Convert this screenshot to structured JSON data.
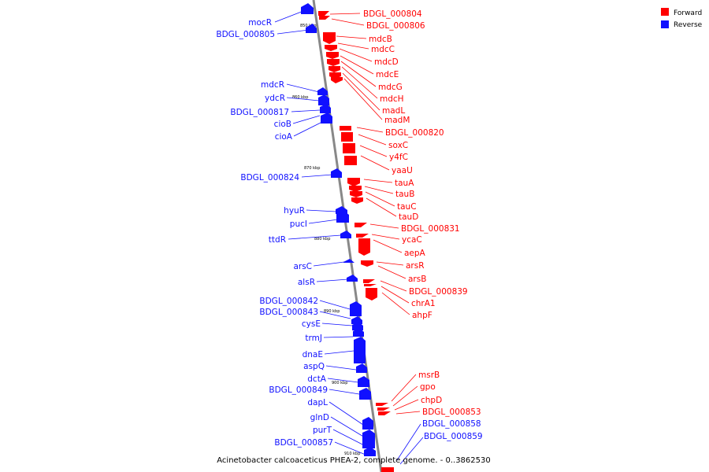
{
  "caption": "Acinetobacter calcoaceticus PHEA-2, complete genome. - 0..3862530",
  "colors": {
    "forward": "#ff0000",
    "reverse": "#1010ff",
    "backbone": "#888888"
  },
  "legend": [
    {
      "label": "Forward",
      "strand": "forward"
    },
    {
      "label": "Reverse",
      "strand": "reverse"
    }
  ],
  "ticks": [
    "850 kbp",
    "860 kbp",
    "870 kbp",
    "880 kbp",
    "890 kbp",
    "900 kbp",
    "910 kbp"
  ],
  "forward_genes": [
    "BDGL_000804",
    "BDGL_000806",
    "mdcB",
    "mdcC",
    "mdcD",
    "mdcE",
    "mdcG",
    "mdcH",
    "madL",
    "madM",
    "BDGL_000820",
    "soxC",
    "y4fC",
    "yaaU",
    "tauA",
    "tauB",
    "tauC",
    "tauD",
    "BDGL_000831",
    "ycaC",
    "aepA",
    "arsR",
    "arsB",
    "BDGL_000839",
    "chrA1",
    "ahpF",
    "msrB",
    "gpo",
    "chpD",
    "BDGL_000853"
  ],
  "reverse_genes": [
    "mocR",
    "BDGL_000805",
    "mdcR",
    "ydcR",
    "BDGL_000817",
    "cioB",
    "cioA",
    "BDGL_000824",
    "hyuR",
    "pucI",
    "ttdR",
    "arsC",
    "alsR",
    "BDGL_000842",
    "BDGL_000843",
    "cysE",
    "trmJ",
    "dnaE",
    "aspQ",
    "dctA",
    "BDGL_000849",
    "dapL",
    "glnD",
    "purT",
    "BDGL_000857",
    "BDGL_000858",
    "BDGL_000859"
  ]
}
